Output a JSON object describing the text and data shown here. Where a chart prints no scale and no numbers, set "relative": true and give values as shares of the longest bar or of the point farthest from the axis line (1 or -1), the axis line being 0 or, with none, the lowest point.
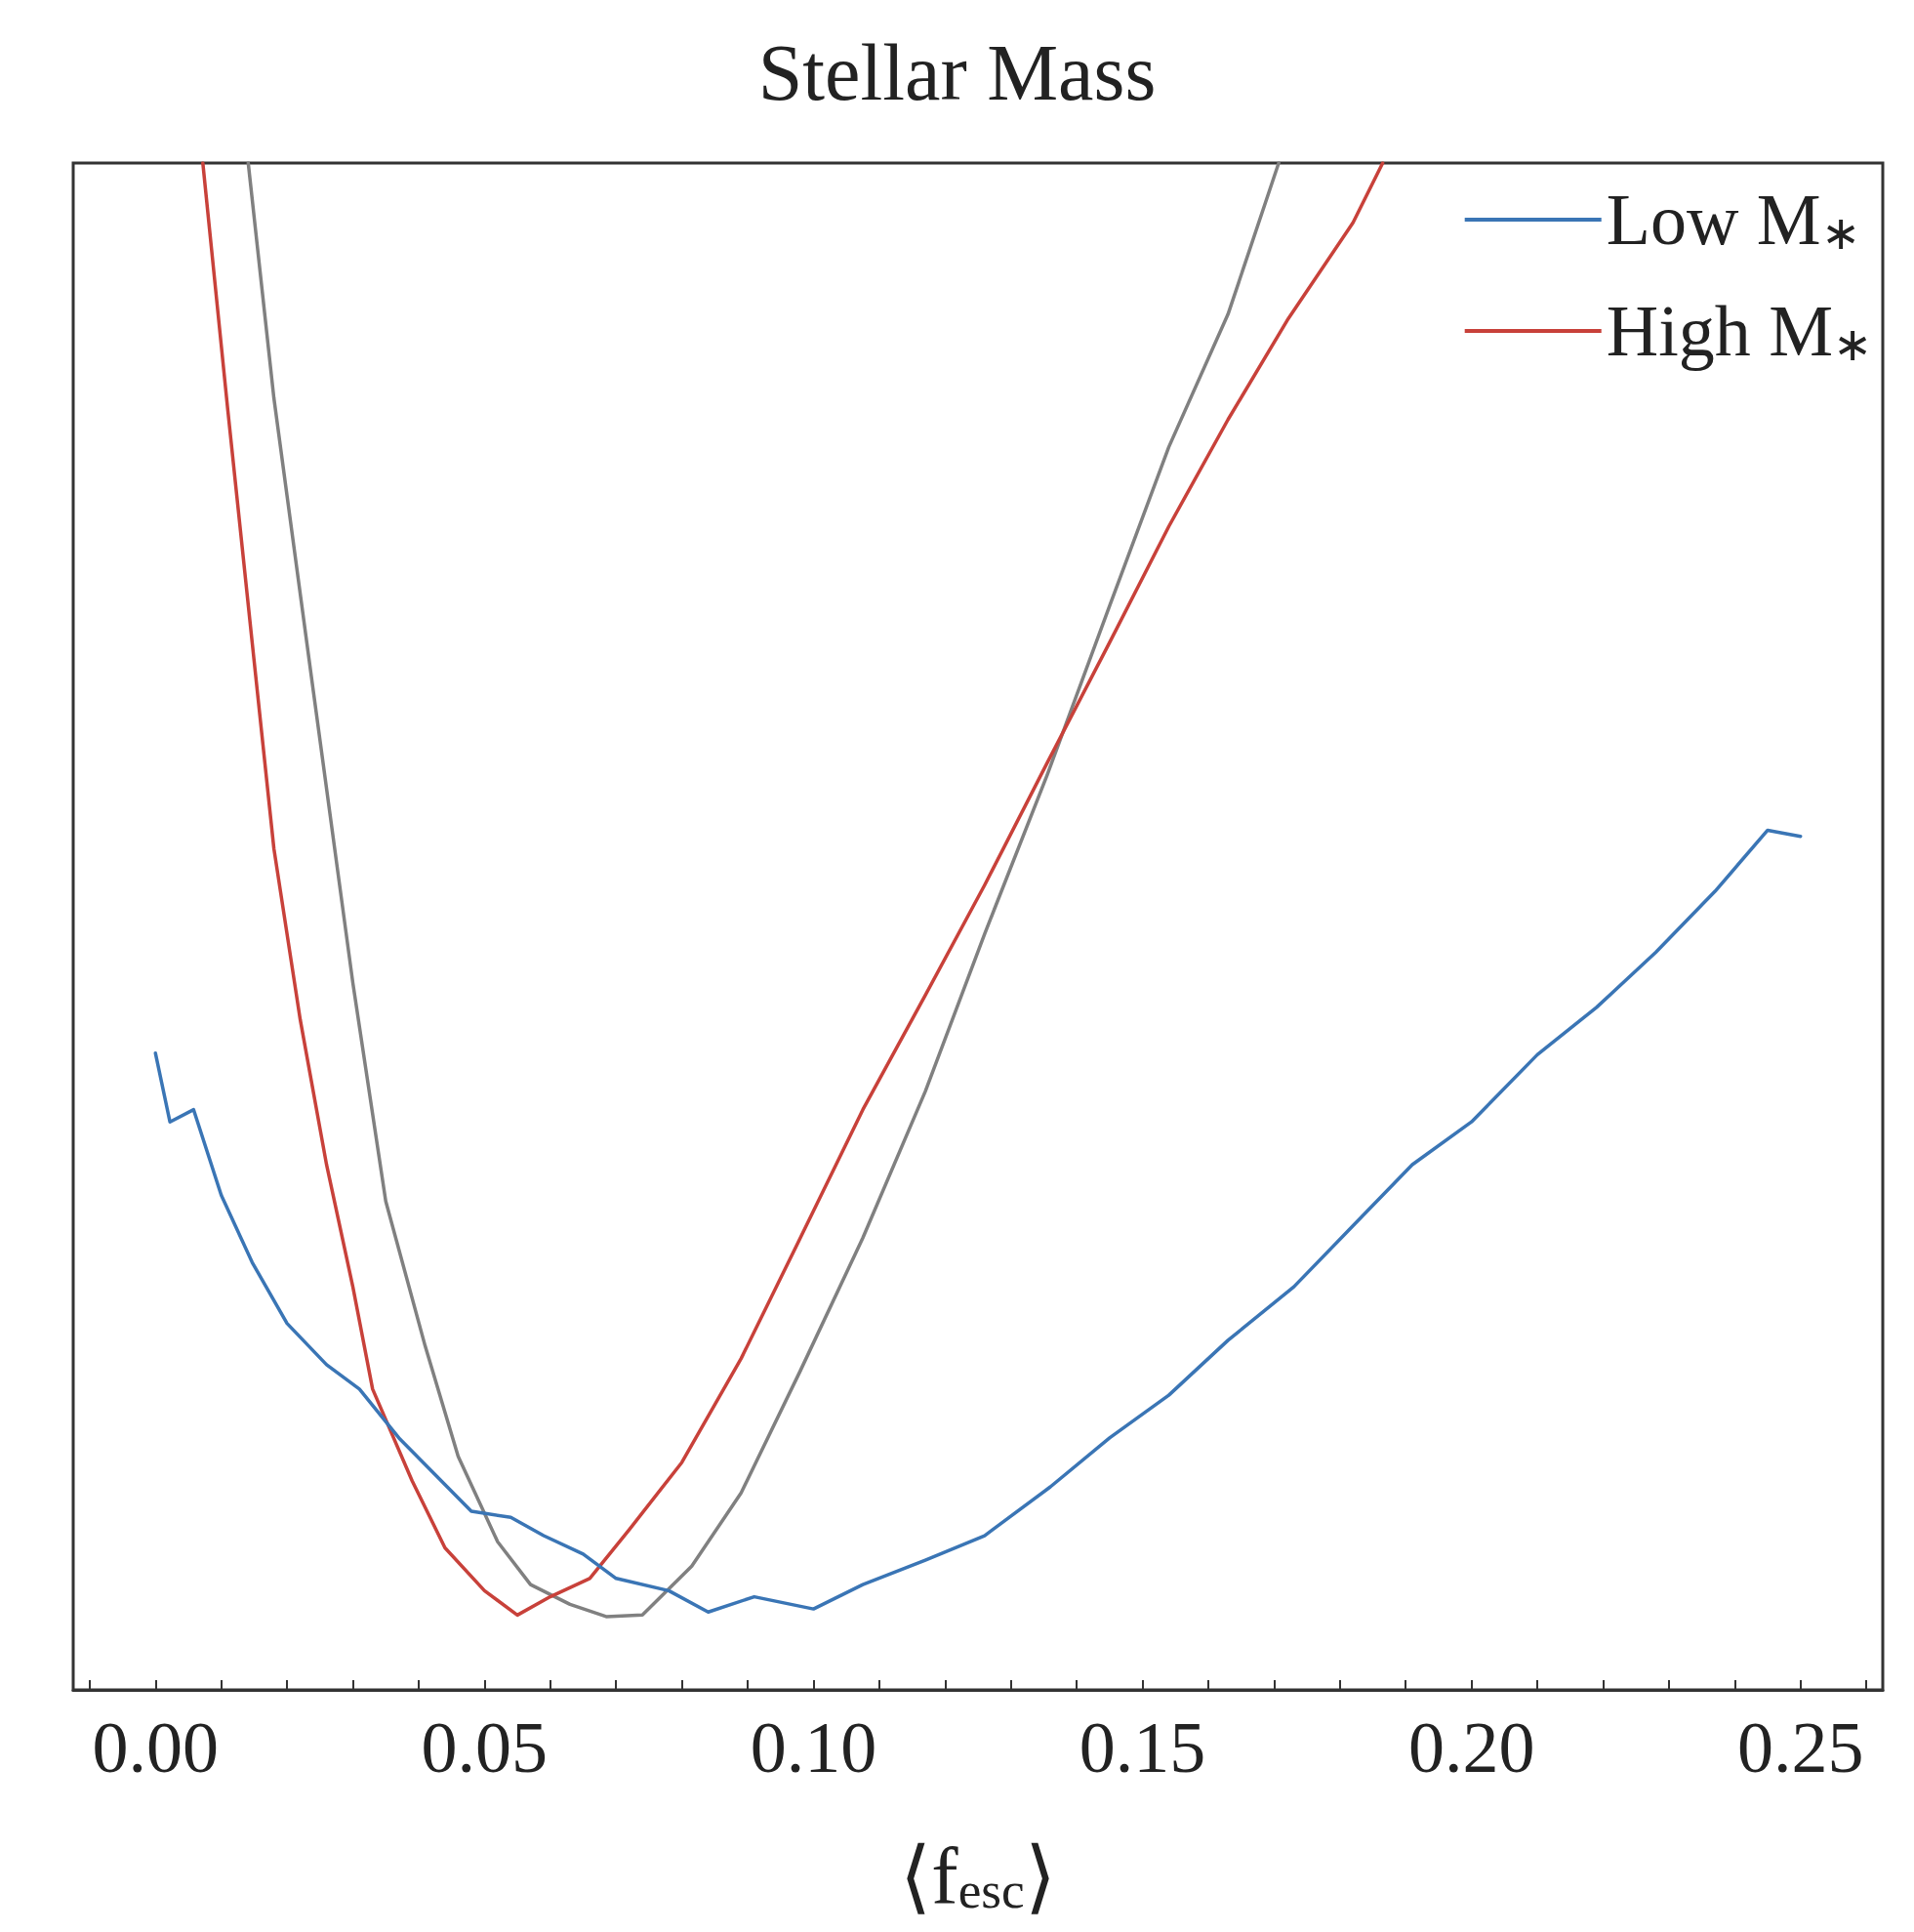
{
  "chart_data": {
    "type": "line",
    "title": "Stellar Mass",
    "xlabel": "⟨f$_{esc}$⟩",
    "relative": true,
    "xlim": [
      -0.0125,
      0.2625
    ],
    "xticks": [
      {
        "value": -0.01,
        "label": null
      },
      {
        "value": 0,
        "label": "0.00"
      },
      {
        "value": 0.01,
        "label": null
      },
      {
        "value": 0.02,
        "label": null
      },
      {
        "value": 0.03,
        "label": null
      },
      {
        "value": 0.04,
        "label": null
      },
      {
        "value": 0.05,
        "label": "0.05"
      },
      {
        "value": 0.06,
        "label": null
      },
      {
        "value": 0.07,
        "label": null
      },
      {
        "value": 0.08,
        "label": null
      },
      {
        "value": 0.09,
        "label": null
      },
      {
        "value": 0.1,
        "label": "0.10"
      },
      {
        "value": 0.11,
        "label": null
      },
      {
        "value": 0.12,
        "label": null
      },
      {
        "value": 0.13,
        "label": null
      },
      {
        "value": 0.14,
        "label": null
      },
      {
        "value": 0.15,
        "label": "0.15"
      },
      {
        "value": 0.16,
        "label": null
      },
      {
        "value": 0.17,
        "label": null
      },
      {
        "value": 0.18,
        "label": null
      },
      {
        "value": 0.19,
        "label": null
      },
      {
        "value": 0.2,
        "label": "0.20"
      },
      {
        "value": 0.21,
        "label": null
      },
      {
        "value": 0.22,
        "label": null
      },
      {
        "value": 0.23,
        "label": null
      },
      {
        "value": 0.24,
        "label": null
      },
      {
        "value": 0.25,
        "label": "0.25"
      },
      {
        "value": 0.26,
        "label": null
      }
    ],
    "grid": false,
    "legend": "top right",
    "marker": "none",
    "line_style": "solid",
    "series": [
      {
        "name": "Low M$_{∗}$",
        "color": "#3a75b5",
        "x": [
          0,
          0.0022,
          0.0058,
          0.01,
          0.0147,
          0.02,
          0.026,
          0.031,
          0.037,
          0.0425,
          0.048,
          0.054,
          0.059,
          0.065,
          0.07,
          0.078,
          0.084,
          0.091,
          0.1,
          0.1075,
          0.117,
          0.126,
          0.136,
          0.145,
          0.154,
          0.163,
          0.173,
          0.182,
          0.191,
          0.2,
          0.21,
          0.219,
          0.228,
          0.237,
          0.245,
          0.25
        ],
        "values": [
          0.417,
          0.372,
          0.38,
          0.324,
          0.28,
          0.24,
          0.213,
          0.197,
          0.165,
          0.141,
          0.117,
          0.113,
          0.101,
          0.089,
          0.073,
          0.065,
          0.051,
          0.061,
          0.053,
          0.069,
          0.085,
          0.101,
          0.133,
          0.165,
          0.193,
          0.229,
          0.264,
          0.304,
          0.344,
          0.372,
          0.416,
          0.447,
          0.483,
          0.523,
          0.563,
          0.559
        ]
      },
      {
        "name": "High M$_{∗}$",
        "color": "#c8413a",
        "x": [
          0.0072,
          0.011,
          0.0147,
          0.018,
          0.022,
          0.026,
          0.03,
          0.033,
          0.039,
          0.044,
          0.05,
          0.055,
          0.06,
          0.066,
          0.072,
          0.08,
          0.089,
          0.098,
          0.1075,
          0.117,
          0.126,
          0.1355,
          0.145,
          0.154,
          0.163,
          0.172,
          0.182,
          0.1865
        ],
        "values": [
          1.0,
          0.838,
          0.686,
          0.551,
          0.439,
          0.344,
          0.264,
          0.197,
          0.137,
          0.093,
          0.065,
          0.049,
          0.061,
          0.073,
          0.105,
          0.149,
          0.217,
          0.296,
          0.38,
          0.455,
          0.527,
          0.607,
          0.686,
          0.762,
          0.832,
          0.897,
          0.961,
          1.0
        ]
      },
      {
        "color": "#808080",
        "x": [
          0.0141,
          0.018,
          0.024,
          0.03,
          0.035,
          0.041,
          0.046,
          0.052,
          0.057,
          0.063,
          0.0685,
          0.074,
          0.0815,
          0.089,
          0.098,
          0.1075,
          0.117,
          0.126,
          0.1355,
          0.145,
          0.154,
          0.163,
          0.1707
        ],
        "values": [
          1.0,
          0.846,
          0.654,
          0.463,
          0.32,
          0.225,
          0.153,
          0.097,
          0.069,
          0.056,
          0.048,
          0.049,
          0.081,
          0.129,
          0.209,
          0.296,
          0.392,
          0.495,
          0.599,
          0.71,
          0.814,
          0.901,
          1.0
        ]
      }
    ]
  }
}
